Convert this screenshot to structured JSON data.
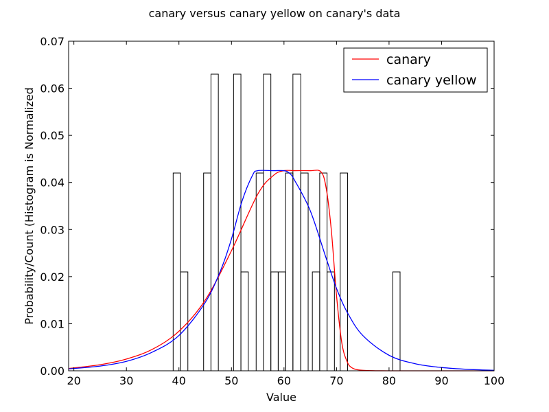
{
  "chart_data": {
    "type": "histogram",
    "title": "canary versus canary yellow on canary's data",
    "xlabel": "Value",
    "ylabel": "Probability/Count (Histogram is Normalized",
    "xlim": [
      19,
      100
    ],
    "ylim": [
      0,
      0.07
    ],
    "xticks": [
      "20",
      "30",
      "40",
      "50",
      "60",
      "70",
      "80",
      "90",
      "100"
    ],
    "xtick_values": [
      20,
      30,
      40,
      50,
      60,
      70,
      80,
      90,
      100
    ],
    "yticks": [
      "0.00",
      "0.01",
      "0.02",
      "0.03",
      "0.04",
      "0.05",
      "0.06",
      "0.07"
    ],
    "ytick_values": [
      0,
      0.01,
      0.02,
      0.03,
      0.04,
      0.05,
      0.06,
      0.07
    ],
    "grid": false,
    "legend_position": "top-right",
    "histogram": {
      "bins": [
        {
          "x0": 38.9,
          "x1": 40.3,
          "value": 0.042
        },
        {
          "x0": 40.3,
          "x1": 41.7,
          "value": 0.021
        },
        {
          "x0": 44.7,
          "x1": 46.1,
          "value": 0.042
        },
        {
          "x0": 46.1,
          "x1": 47.5,
          "value": 0.063
        },
        {
          "x0": 50.4,
          "x1": 51.8,
          "value": 0.063
        },
        {
          "x0": 51.8,
          "x1": 53.2,
          "value": 0.021
        },
        {
          "x0": 54.7,
          "x1": 56.1,
          "value": 0.042
        },
        {
          "x0": 56.1,
          "x1": 57.5,
          "value": 0.063
        },
        {
          "x0": 57.5,
          "x1": 58.9,
          "value": 0.021
        },
        {
          "x0": 58.9,
          "x1": 60.3,
          "value": 0.021
        },
        {
          "x0": 60.3,
          "x1": 61.7,
          "value": 0.042
        },
        {
          "x0": 61.7,
          "x1": 63.2,
          "value": 0.063
        },
        {
          "x0": 63.2,
          "x1": 64.6,
          "value": 0.042
        },
        {
          "x0": 65.4,
          "x1": 66.8,
          "value": 0.021
        },
        {
          "x0": 66.8,
          "x1": 68.2,
          "value": 0.042
        },
        {
          "x0": 68.2,
          "x1": 69.6,
          "value": 0.021
        },
        {
          "x0": 70.7,
          "x1": 72.1,
          "value": 0.042
        },
        {
          "x0": 80.7,
          "x1": 82.1,
          "value": 0.021
        }
      ]
    },
    "series": [
      {
        "name": "canary",
        "color": "#ff0000",
        "x": [
          19,
          25,
          30,
          35,
          40,
          45,
          50,
          55,
          58,
          60,
          62,
          65,
          67,
          68,
          69,
          70,
          71,
          72,
          73,
          75,
          80,
          90,
          100
        ],
        "y": [
          0.0005,
          0.0013,
          0.0025,
          0.0046,
          0.0084,
          0.015,
          0.0255,
          0.0375,
          0.0415,
          0.0425,
          0.0425,
          0.0425,
          0.0423,
          0.039,
          0.03,
          0.016,
          0.006,
          0.002,
          0.0006,
          0.0001,
          0.0,
          0.0,
          0.0
        ]
      },
      {
        "name": "canary yellow",
        "color": "#0000ff",
        "x": [
          19,
          25,
          30,
          35,
          40,
          45,
          48,
          50,
          52,
          54,
          55,
          58,
          60,
          61,
          62,
          65,
          68,
          70,
          72,
          75,
          80,
          85,
          90,
          95,
          100
        ],
        "y": [
          0.0004,
          0.001,
          0.002,
          0.004,
          0.0075,
          0.0145,
          0.0215,
          0.028,
          0.036,
          0.0415,
          0.0425,
          0.0425,
          0.0425,
          0.042,
          0.0405,
          0.034,
          0.024,
          0.0175,
          0.0125,
          0.0075,
          0.0033,
          0.0015,
          0.0007,
          0.0003,
          0.0001
        ]
      }
    ]
  }
}
